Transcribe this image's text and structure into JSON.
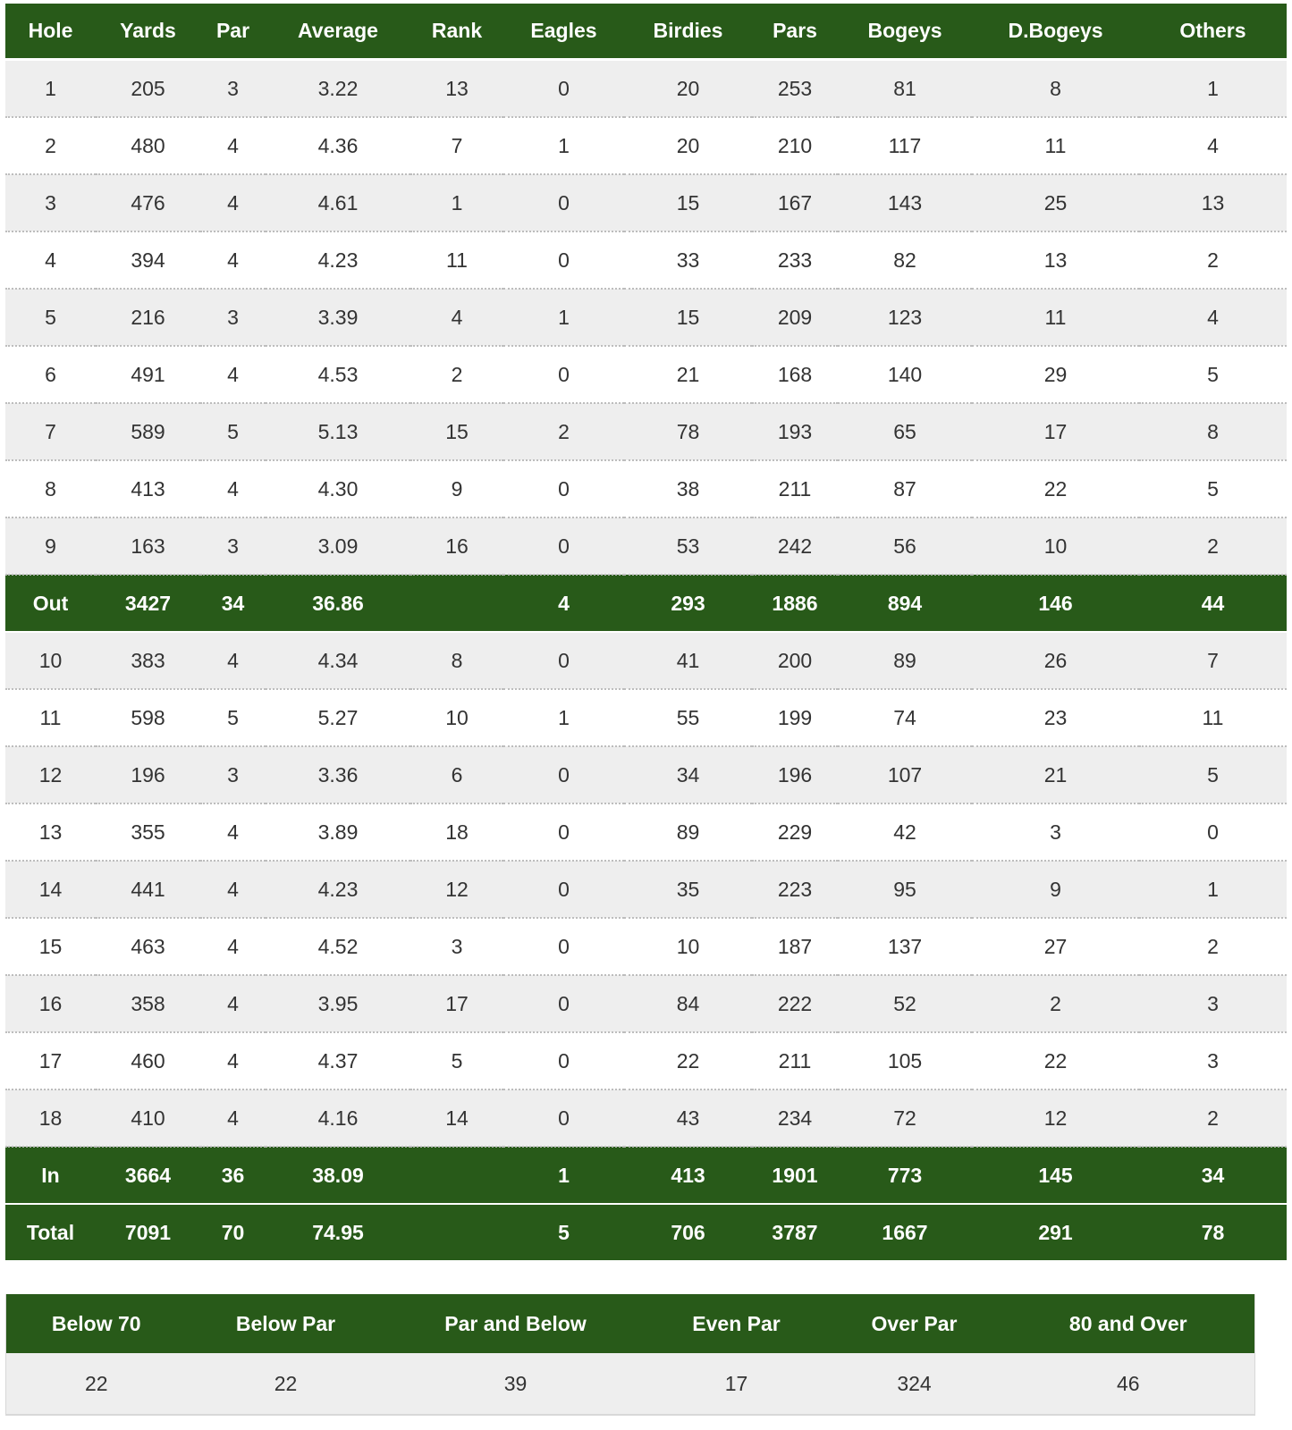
{
  "stats": {
    "columns": [
      "Hole",
      "Yards",
      "Par",
      "Average",
      "Rank",
      "Eagles",
      "Birdies",
      "Pars",
      "Bogeys",
      "D.Bogeys",
      "Others"
    ],
    "rows": [
      [
        "1",
        "205",
        "3",
        "3.22",
        "13",
        "0",
        "20",
        "253",
        "81",
        "8",
        "1"
      ],
      [
        "2",
        "480",
        "4",
        "4.36",
        "7",
        "1",
        "20",
        "210",
        "117",
        "11",
        "4"
      ],
      [
        "3",
        "476",
        "4",
        "4.61",
        "1",
        "0",
        "15",
        "167",
        "143",
        "25",
        "13"
      ],
      [
        "4",
        "394",
        "4",
        "4.23",
        "11",
        "0",
        "33",
        "233",
        "82",
        "13",
        "2"
      ],
      [
        "5",
        "216",
        "3",
        "3.39",
        "4",
        "1",
        "15",
        "209",
        "123",
        "11",
        "4"
      ],
      [
        "6",
        "491",
        "4",
        "4.53",
        "2",
        "0",
        "21",
        "168",
        "140",
        "29",
        "5"
      ],
      [
        "7",
        "589",
        "5",
        "5.13",
        "15",
        "2",
        "78",
        "193",
        "65",
        "17",
        "8"
      ],
      [
        "8",
        "413",
        "4",
        "4.30",
        "9",
        "0",
        "38",
        "211",
        "87",
        "22",
        "5"
      ],
      [
        "9",
        "163",
        "3",
        "3.09",
        "16",
        "0",
        "53",
        "242",
        "56",
        "10",
        "2"
      ],
      [
        "Out",
        "3427",
        "34",
        "36.86",
        "",
        "4",
        "293",
        "1886",
        "894",
        "146",
        "44"
      ],
      [
        "10",
        "383",
        "4",
        "4.34",
        "8",
        "0",
        "41",
        "200",
        "89",
        "26",
        "7"
      ],
      [
        "11",
        "598",
        "5",
        "5.27",
        "10",
        "1",
        "55",
        "199",
        "74",
        "23",
        "11"
      ],
      [
        "12",
        "196",
        "3",
        "3.36",
        "6",
        "0",
        "34",
        "196",
        "107",
        "21",
        "5"
      ],
      [
        "13",
        "355",
        "4",
        "3.89",
        "18",
        "0",
        "89",
        "229",
        "42",
        "3",
        "0"
      ],
      [
        "14",
        "441",
        "4",
        "4.23",
        "12",
        "0",
        "35",
        "223",
        "95",
        "9",
        "1"
      ],
      [
        "15",
        "463",
        "4",
        "4.52",
        "3",
        "0",
        "10",
        "187",
        "137",
        "27",
        "2"
      ],
      [
        "16",
        "358",
        "4",
        "3.95",
        "17",
        "0",
        "84",
        "222",
        "52",
        "2",
        "3"
      ],
      [
        "17",
        "460",
        "4",
        "4.37",
        "5",
        "0",
        "22",
        "211",
        "105",
        "22",
        "3"
      ],
      [
        "18",
        "410",
        "4",
        "4.16",
        "14",
        "0",
        "43",
        "234",
        "72",
        "12",
        "2"
      ],
      [
        "In",
        "3664",
        "36",
        "38.09",
        "",
        "1",
        "413",
        "1901",
        "773",
        "145",
        "34"
      ],
      [
        "Total",
        "7091",
        "70",
        "74.95",
        "",
        "5",
        "706",
        "3787",
        "1667",
        "291",
        "78"
      ]
    ]
  },
  "summary": {
    "columns": [
      "Below 70",
      "Below Par",
      "Par and Below",
      "Even Par",
      "Over Par",
      "80 and Over"
    ],
    "values": [
      "22",
      "22",
      "39",
      "17",
      "324",
      "46"
    ]
  },
  "colors": {
    "header_green": "#285a19",
    "row_alt": "#eeeeee",
    "text": "#333333"
  }
}
